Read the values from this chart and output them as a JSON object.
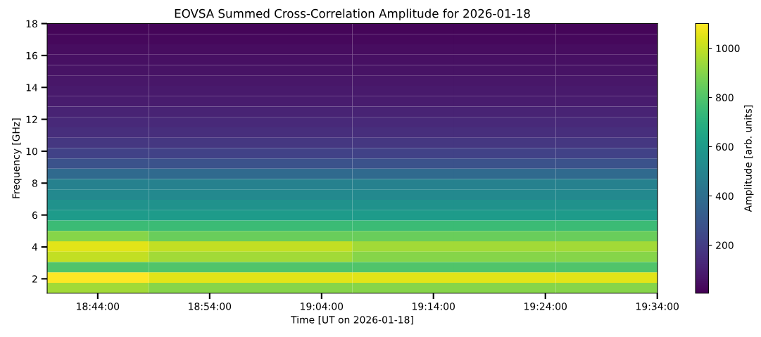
{
  "chart_data": {
    "type": "heatmap",
    "title": "EOVSA Summed Cross-Correlation Amplitude for 2026-01-18",
    "xlabel": "Time [UT on 2026-01-18]",
    "ylabel": "Frequency [GHz]",
    "clabel": "Amplitude [arb. units]",
    "xlim": [
      18.658,
      19.567
    ],
    "xticks": [
      {
        "value": 18.7333,
        "label": "18:44:00"
      },
      {
        "value": 18.9,
        "label": "18:54:00"
      },
      {
        "value": 19.0667,
        "label": "19:04:00"
      },
      {
        "value": 19.2333,
        "label": "19:14:00"
      },
      {
        "value": 19.4,
        "label": "19:24:00"
      },
      {
        "value": 19.5667,
        "label": "19:34:00"
      }
    ],
    "ylim": [
      1.1,
      18
    ],
    "yticks": [
      2,
      4,
      6,
      8,
      10,
      12,
      14,
      16,
      18
    ],
    "clim": [
      5,
      1100
    ],
    "cticks": [
      200,
      400,
      600,
      800,
      1000
    ],
    "cells": [
      [
        20,
        20,
        20,
        20,
        20,
        20
      ],
      [
        30,
        30,
        30,
        30,
        30,
        30
      ],
      [
        40,
        40,
        40,
        40,
        40,
        40
      ],
      [
        50,
        50,
        50,
        50,
        50,
        50
      ],
      [
        60,
        60,
        60,
        60,
        60,
        60
      ],
      [
        70,
        70,
        70,
        70,
        70,
        70
      ],
      [
        80,
        80,
        80,
        80,
        80,
        80
      ],
      [
        90,
        90,
        90,
        90,
        90,
        90
      ],
      [
        110,
        110,
        110,
        110,
        110,
        110
      ],
      [
        130,
        130,
        130,
        130,
        130,
        130
      ],
      [
        150,
        150,
        150,
        150,
        150,
        150
      ],
      [
        180,
        180,
        180,
        180,
        180,
        180
      ],
      [
        220,
        220,
        220,
        220,
        220,
        220
      ],
      [
        280,
        280,
        280,
        280,
        280,
        280
      ],
      [
        380,
        380,
        380,
        380,
        380,
        380
      ],
      [
        480,
        480,
        480,
        480,
        480,
        480
      ],
      [
        520,
        520,
        520,
        520,
        520,
        520
      ],
      [
        560,
        560,
        560,
        560,
        560,
        560
      ],
      [
        600,
        600,
        600,
        600,
        600,
        600
      ],
      [
        750,
        750,
        750,
        750,
        750,
        750
      ],
      [
        900,
        850,
        850,
        850,
        850,
        850
      ],
      [
        1050,
        1000,
        1000,
        950,
        950,
        950
      ],
      [
        1000,
        950,
        950,
        900,
        900,
        900
      ],
      [
        800,
        800,
        800,
        800,
        800,
        800
      ],
      [
        1100,
        1050,
        1050,
        1050,
        1050,
        1050
      ],
      [
        950,
        900,
        900,
        900,
        900,
        900
      ]
    ]
  }
}
